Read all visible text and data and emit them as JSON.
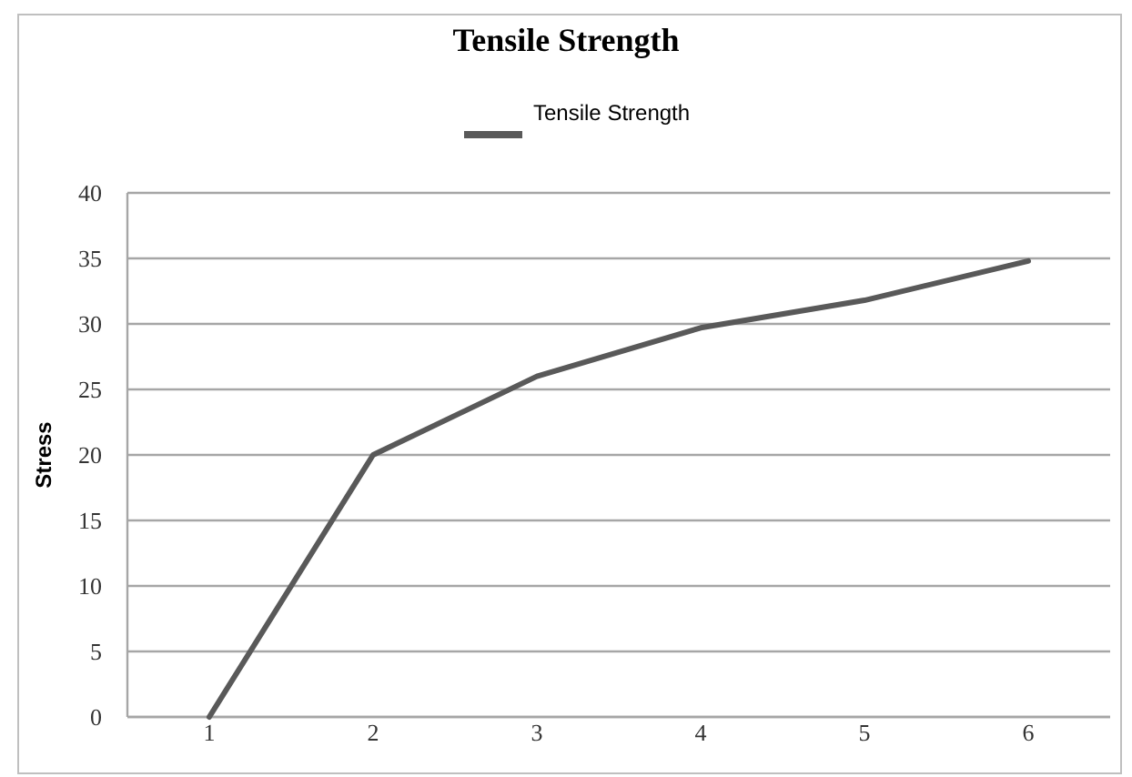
{
  "chart_data": {
    "type": "line",
    "title": "Tensile Strength",
    "ylabel": "Stress",
    "categories": [
      "1",
      "2",
      "3",
      "4",
      "5",
      "6"
    ],
    "series": [
      {
        "name": "Tensile Strength",
        "color": "#595959",
        "values": [
          0,
          20,
          26,
          29.7,
          31.8,
          34.8
        ]
      }
    ],
    "ylim": [
      0,
      40
    ],
    "yticks": [
      0,
      5,
      10,
      15,
      20,
      25,
      30,
      35,
      40
    ],
    "grid": "y",
    "legend": "top",
    "marker": "none",
    "line_style": "solid"
  }
}
